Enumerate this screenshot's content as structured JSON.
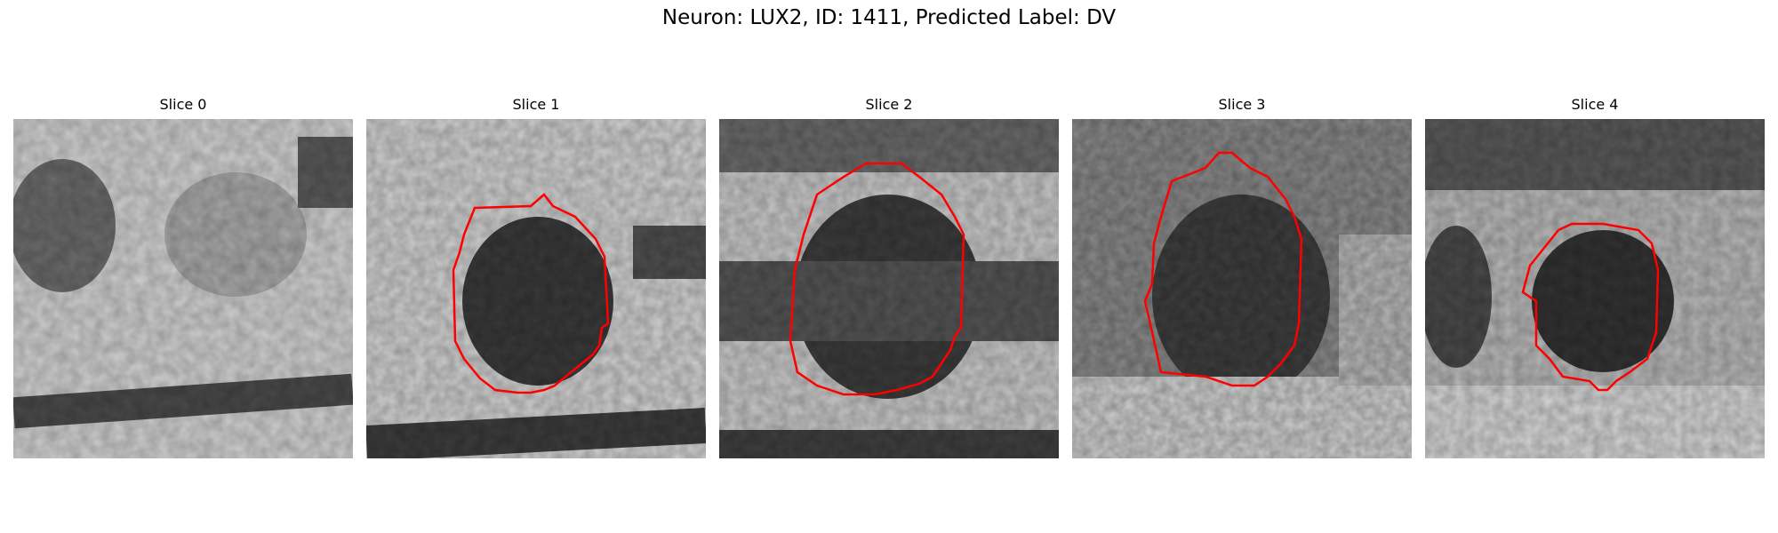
{
  "figure": {
    "title": "Neuron: LUX2, ID: 1411, Predicted Label: DV"
  },
  "panels": [
    {
      "title": "Slice 0",
      "has_contour": false,
      "image": "grayscale microscopy slice"
    },
    {
      "title": "Slice 1",
      "has_contour": true,
      "image": "grayscale microscopy slice with dark round cell"
    },
    {
      "title": "Slice 2",
      "has_contour": true,
      "image": "grayscale microscopy slice with dark round cell"
    },
    {
      "title": "Slice 3",
      "has_contour": true,
      "image": "grayscale microscopy slice with dark round cell"
    },
    {
      "title": "Slice 4",
      "has_contour": true,
      "image": "grayscale microscopy slice with dark round cell"
    }
  ],
  "colors": {
    "contour": "#ff0000",
    "background": "#ffffff"
  }
}
